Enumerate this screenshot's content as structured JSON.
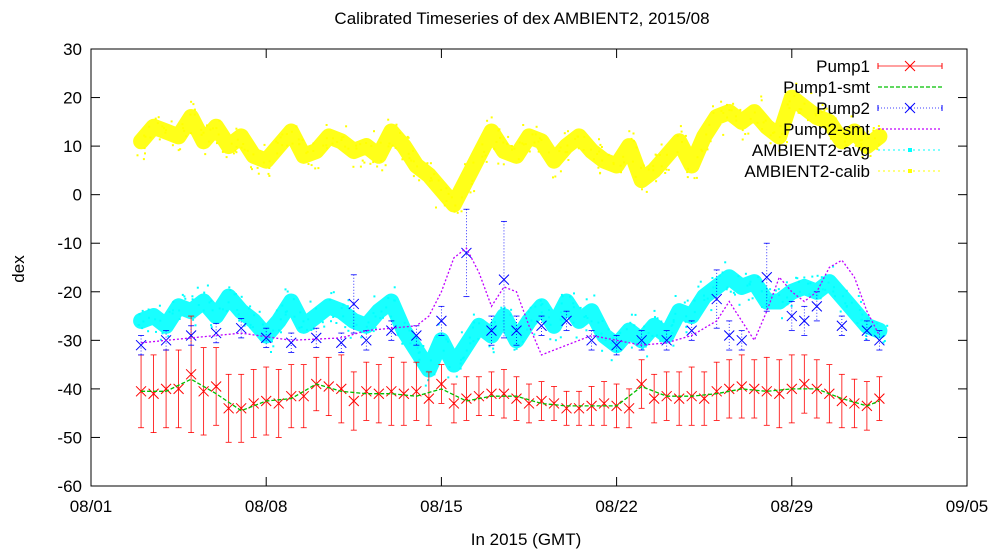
{
  "chart_data": {
    "type": "line",
    "title": "Calibrated Timeseries of dex AMBIENT2, 2015/08",
    "xlabel": "In 2015 (GMT)",
    "ylabel": "dex",
    "xlim": [
      "2015-08-01",
      "2015-09-05"
    ],
    "ylim": [
      -60,
      30
    ],
    "x_ticks": [
      "08/01",
      "08/08",
      "08/15",
      "08/22",
      "08/29",
      "09/05"
    ],
    "y_ticks": [
      30,
      20,
      10,
      0,
      -10,
      -20,
      -30,
      -40,
      -50,
      -60
    ],
    "legend_position": "top-right",
    "series": [
      {
        "name": "Pump1",
        "color": "#ff0000",
        "style": "points-with-errorbars",
        "x": [
          "2015-08-03 00:00",
          "2015-08-03 12:00",
          "2015-08-04 00:00",
          "2015-08-04 12:00",
          "2015-08-05 00:00",
          "2015-08-05 12:00",
          "2015-08-06 00:00",
          "2015-08-06 12:00",
          "2015-08-07 00:00",
          "2015-08-07 12:00",
          "2015-08-08 00:00",
          "2015-08-08 12:00",
          "2015-08-09 00:00",
          "2015-08-09 12:00",
          "2015-08-10 00:00",
          "2015-08-10 12:00",
          "2015-08-11 00:00",
          "2015-08-11 12:00",
          "2015-08-12 00:00",
          "2015-08-12 12:00",
          "2015-08-13 00:00",
          "2015-08-13 12:00",
          "2015-08-14 00:00",
          "2015-08-14 12:00",
          "2015-08-15 00:00",
          "2015-08-15 12:00",
          "2015-08-16 00:00",
          "2015-08-16 12:00",
          "2015-08-17 00:00",
          "2015-08-17 12:00",
          "2015-08-18 00:00",
          "2015-08-18 12:00",
          "2015-08-19 00:00",
          "2015-08-19 12:00",
          "2015-08-20 00:00",
          "2015-08-20 12:00",
          "2015-08-21 00:00",
          "2015-08-21 12:00",
          "2015-08-22 00:00",
          "2015-08-22 12:00",
          "2015-08-23 00:00",
          "2015-08-23 12:00",
          "2015-08-24 00:00",
          "2015-08-24 12:00",
          "2015-08-25 00:00",
          "2015-08-25 12:00",
          "2015-08-26 00:00",
          "2015-08-26 12:00",
          "2015-08-27 00:00",
          "2015-08-27 12:00",
          "2015-08-28 00:00",
          "2015-08-28 12:00",
          "2015-08-29 00:00",
          "2015-08-29 12:00",
          "2015-08-30 00:00",
          "2015-08-30 12:00",
          "2015-08-31 00:00",
          "2015-08-31 12:00",
          "2015-09-01 00:00",
          "2015-09-01 12:00"
        ],
        "y": [
          -40.5,
          -41,
          -40,
          -40,
          -37,
          -40.5,
          -39.5,
          -44,
          -44,
          -43,
          -42.5,
          -43,
          -41.5,
          -41.5,
          -39,
          -39.5,
          -40,
          -42.5,
          -40.5,
          -41,
          -40.5,
          -41,
          -40.5,
          -42,
          -39,
          -43,
          -42,
          -41.5,
          -41,
          -41,
          -42,
          -43,
          -42.5,
          -43,
          -44,
          -44,
          -43.5,
          -43,
          -43.5,
          -44,
          -39,
          -42,
          -41.5,
          -42,
          -41.5,
          -42,
          -40.5,
          -40,
          -39.5,
          -40,
          -40.5,
          -41,
          -40,
          -39,
          -40,
          -41,
          -42.5,
          -43,
          -43.5,
          -42
        ],
        "error": [
          7.5,
          8,
          8,
          8,
          12,
          9,
          8,
          7,
          7,
          7,
          7,
          7,
          6.5,
          6.5,
          5.5,
          6,
          7,
          6,
          6,
          6,
          7,
          6.5,
          6,
          5.5,
          4,
          4,
          4.5,
          4,
          4.5,
          5,
          4.5,
          4,
          4,
          3.5,
          3.5,
          3.5,
          4,
          4.5,
          4.5,
          4,
          5,
          5,
          5,
          5.5,
          6,
          5.5,
          6,
          6,
          6.5,
          6,
          7,
          7,
          7,
          6,
          6,
          6,
          5.5,
          5,
          5,
          4.5
        ]
      },
      {
        "name": "Pump1-smt",
        "color": "#00c000",
        "style": "dashed-line",
        "x": [
          "2015-08-03 00:00",
          "2015-08-04 00:00",
          "2015-08-05 00:00",
          "2015-08-06 00:00",
          "2015-08-07 00:00",
          "2015-08-08 00:00",
          "2015-08-09 00:00",
          "2015-08-10 00:00",
          "2015-08-11 00:00",
          "2015-08-12 00:00",
          "2015-08-13 00:00",
          "2015-08-14 00:00",
          "2015-08-15 00:00",
          "2015-08-16 00:00",
          "2015-08-17 00:00",
          "2015-08-18 00:00",
          "2015-08-19 00:00",
          "2015-08-20 00:00",
          "2015-08-21 00:00",
          "2015-08-22 00:00",
          "2015-08-23 00:00",
          "2015-08-24 00:00",
          "2015-08-25 00:00",
          "2015-08-26 00:00",
          "2015-08-27 00:00",
          "2015-08-28 00:00",
          "2015-08-29 00:00",
          "2015-08-30 00:00",
          "2015-08-31 00:00",
          "2015-09-01 00:00",
          "2015-09-01 12:00"
        ],
        "y": [
          -40.5,
          -40.5,
          -38,
          -41,
          -44.5,
          -42.5,
          -42,
          -39,
          -40.5,
          -41,
          -41,
          -41.5,
          -40,
          -42.5,
          -41.5,
          -41.5,
          -43,
          -43.5,
          -43.5,
          -43.5,
          -39.5,
          -41.5,
          -41.5,
          -41,
          -40,
          -40.5,
          -40,
          -40,
          -42,
          -43.5,
          -42.5
        ]
      },
      {
        "name": "Pump2",
        "color": "#0000ff",
        "style": "points-with-errorbars",
        "x": [
          "2015-08-03 00:00",
          "2015-08-04 00:00",
          "2015-08-05 00:00",
          "2015-08-06 00:00",
          "2015-08-07 00:00",
          "2015-08-08 00:00",
          "2015-08-09 00:00",
          "2015-08-10 00:00",
          "2015-08-11 00:00",
          "2015-08-11 12:00",
          "2015-08-12 00:00",
          "2015-08-13 00:00",
          "2015-08-14 00:00",
          "2015-08-15 00:00",
          "2015-08-16 00:00",
          "2015-08-17 00:00",
          "2015-08-17 12:00",
          "2015-08-18 00:00",
          "2015-08-19 00:00",
          "2015-08-20 00:00",
          "2015-08-21 00:00",
          "2015-08-22 00:00",
          "2015-08-23 00:00",
          "2015-08-24 00:00",
          "2015-08-25 00:00",
          "2015-08-26 00:00",
          "2015-08-26 12:00",
          "2015-08-27 00:00",
          "2015-08-28 00:00",
          "2015-08-29 00:00",
          "2015-08-29 12:00",
          "2015-08-30 00:00",
          "2015-08-31 00:00",
          "2015-09-01 00:00",
          "2015-09-01 12:00"
        ],
        "y": [
          -31,
          -30,
          -29,
          -28.5,
          -27.5,
          -29.5,
          -30.5,
          -29.5,
          -30.5,
          -22.5,
          -30,
          -28,
          -29,
          -26,
          -12,
          -28,
          -17.5,
          -28,
          -27,
          -26,
          -30,
          -31,
          -30,
          -30,
          -28,
          -21.5,
          -29,
          -30,
          -17,
          -25,
          -26,
          -23,
          -27,
          -28,
          -30
        ],
        "error": [
          2,
          2,
          2,
          2,
          2,
          2,
          2,
          2,
          2,
          6,
          2,
          2,
          2,
          3,
          9,
          3,
          12,
          3,
          2,
          2,
          2,
          2,
          2,
          2,
          2,
          6,
          3,
          2,
          7,
          3,
          3,
          3,
          2,
          2,
          2
        ]
      },
      {
        "name": "Pump2-smt",
        "color": "#c000ff",
        "style": "dotted-line",
        "x": [
          "2015-08-03 00:00",
          "2015-08-05 00:00",
          "2015-08-07 00:00",
          "2015-08-09 00:00",
          "2015-08-11 00:00",
          "2015-08-12 00:00",
          "2015-08-13 00:00",
          "2015-08-14 00:00",
          "2015-08-14 12:00",
          "2015-08-15 00:00",
          "2015-08-15 12:00",
          "2015-08-16 00:00",
          "2015-08-16 12:00",
          "2015-08-17 00:00",
          "2015-08-17 12:00",
          "2015-08-18 00:00",
          "2015-08-18 12:00",
          "2015-08-19 00:00",
          "2015-08-20 00:00",
          "2015-08-21 00:00",
          "2015-08-22 00:00",
          "2015-08-23 00:00",
          "2015-08-24 00:00",
          "2015-08-25 00:00",
          "2015-08-26 00:00",
          "2015-08-26 12:00",
          "2015-08-27 00:00",
          "2015-08-27 12:00",
          "2015-08-28 00:00",
          "2015-08-28 12:00",
          "2015-08-29 00:00",
          "2015-08-29 12:00",
          "2015-08-30 00:00",
          "2015-08-30 12:00",
          "2015-08-31 00:00",
          "2015-08-31 12:00",
          "2015-09-01 00:00",
          "2015-09-01 12:00"
        ],
        "y": [
          -30.5,
          -29.5,
          -28.5,
          -30,
          -29.5,
          -28,
          -27.5,
          -27,
          -25,
          -20,
          -13,
          -11,
          -16,
          -23,
          -19,
          -20,
          -27,
          -33,
          -31,
          -29,
          -30,
          -31,
          -30.5,
          -29,
          -26,
          -22,
          -26,
          -30,
          -24,
          -17,
          -20,
          -22,
          -20,
          -15,
          -13.5,
          -17,
          -24,
          -29
        ]
      },
      {
        "name": "AMBIENT2-avg",
        "color": "#00ffff",
        "style": "dense-points",
        "x": [
          "2015-08-03 00:00",
          "2015-08-03 12:00",
          "2015-08-04 00:00",
          "2015-08-04 12:00",
          "2015-08-05 00:00",
          "2015-08-05 12:00",
          "2015-08-06 00:00",
          "2015-08-06 12:00",
          "2015-08-07 00:00",
          "2015-08-07 12:00",
          "2015-08-08 00:00",
          "2015-08-08 12:00",
          "2015-08-09 00:00",
          "2015-08-09 12:00",
          "2015-08-10 00:00",
          "2015-08-10 12:00",
          "2015-08-11 00:00",
          "2015-08-11 12:00",
          "2015-08-12 00:00",
          "2015-08-12 12:00",
          "2015-08-13 00:00",
          "2015-08-13 12:00",
          "2015-08-14 00:00",
          "2015-08-14 12:00",
          "2015-08-15 00:00",
          "2015-08-15 12:00",
          "2015-08-16 00:00",
          "2015-08-16 12:00",
          "2015-08-17 00:00",
          "2015-08-17 12:00",
          "2015-08-18 00:00",
          "2015-08-18 12:00",
          "2015-08-19 00:00",
          "2015-08-19 12:00",
          "2015-08-20 00:00",
          "2015-08-20 12:00",
          "2015-08-21 00:00",
          "2015-08-21 12:00",
          "2015-08-22 00:00",
          "2015-08-22 12:00",
          "2015-08-23 00:00",
          "2015-08-23 12:00",
          "2015-08-24 00:00",
          "2015-08-24 12:00",
          "2015-08-25 00:00",
          "2015-08-25 12:00",
          "2015-08-26 00:00",
          "2015-08-26 12:00",
          "2015-08-27 00:00",
          "2015-08-27 12:00",
          "2015-08-28 00:00",
          "2015-08-28 12:00",
          "2015-08-29 00:00",
          "2015-08-29 12:00",
          "2015-08-30 00:00",
          "2015-08-30 12:00",
          "2015-08-31 00:00",
          "2015-08-31 12:00",
          "2015-09-01 00:00",
          "2015-09-01 12:00"
        ],
        "y": [
          -26,
          -25,
          -27,
          -23,
          -24,
          -22,
          -25,
          -21,
          -24,
          -26,
          -29,
          -26,
          -22,
          -27,
          -25,
          -23,
          -24,
          -26,
          -27,
          -24,
          -22,
          -28,
          -32,
          -36,
          -30,
          -35,
          -31,
          -27,
          -29,
          -25,
          -30,
          -26,
          -23,
          -27,
          -22,
          -26,
          -24,
          -29,
          -31,
          -28,
          -30,
          -27,
          -29,
          -24,
          -25,
          -21,
          -19,
          -17,
          -19,
          -18,
          -22,
          -22,
          -20,
          -19,
          -20,
          -18,
          -21,
          -24,
          -27,
          -28
        ]
      },
      {
        "name": "AMBIENT2-calib",
        "color": "#ffff00",
        "style": "dense-points",
        "x": [
          "2015-08-03 00:00",
          "2015-08-03 12:00",
          "2015-08-04 00:00",
          "2015-08-04 12:00",
          "2015-08-05 00:00",
          "2015-08-05 12:00",
          "2015-08-06 00:00",
          "2015-08-06 12:00",
          "2015-08-07 00:00",
          "2015-08-07 12:00",
          "2015-08-08 00:00",
          "2015-08-08 12:00",
          "2015-08-09 00:00",
          "2015-08-09 12:00",
          "2015-08-10 00:00",
          "2015-08-10 12:00",
          "2015-08-11 00:00",
          "2015-08-11 12:00",
          "2015-08-12 00:00",
          "2015-08-12 12:00",
          "2015-08-13 00:00",
          "2015-08-13 12:00",
          "2015-08-14 00:00",
          "2015-08-14 12:00",
          "2015-08-15 00:00",
          "2015-08-15 12:00",
          "2015-08-16 00:00",
          "2015-08-16 12:00",
          "2015-08-17 00:00",
          "2015-08-17 12:00",
          "2015-08-18 00:00",
          "2015-08-18 12:00",
          "2015-08-19 00:00",
          "2015-08-19 12:00",
          "2015-08-20 00:00",
          "2015-08-20 12:00",
          "2015-08-21 00:00",
          "2015-08-21 12:00",
          "2015-08-22 00:00",
          "2015-08-22 12:00",
          "2015-08-23 00:00",
          "2015-08-23 12:00",
          "2015-08-24 00:00",
          "2015-08-24 12:00",
          "2015-08-25 00:00",
          "2015-08-25 12:00",
          "2015-08-26 00:00",
          "2015-08-26 12:00",
          "2015-08-27 00:00",
          "2015-08-27 12:00",
          "2015-08-28 00:00",
          "2015-08-28 12:00",
          "2015-08-29 00:00",
          "2015-08-29 12:00",
          "2015-08-30 00:00",
          "2015-08-30 12:00",
          "2015-08-31 00:00",
          "2015-08-31 12:00",
          "2015-09-01 00:00",
          "2015-09-01 12:00"
        ],
        "y": [
          11,
          14,
          13,
          12,
          16,
          11,
          14,
          10,
          12,
          8,
          7,
          10,
          13,
          8,
          9,
          12,
          11,
          9,
          10,
          8,
          13,
          10,
          6,
          4,
          1,
          -2,
          3,
          8,
          13,
          9,
          8,
          12,
          11,
          7,
          10,
          12,
          9,
          7,
          6,
          10,
          3,
          5,
          8,
          11,
          6,
          12,
          16,
          17,
          15,
          17,
          14,
          12,
          20,
          18,
          16,
          15,
          11,
          13,
          10,
          12
        ]
      }
    ]
  }
}
